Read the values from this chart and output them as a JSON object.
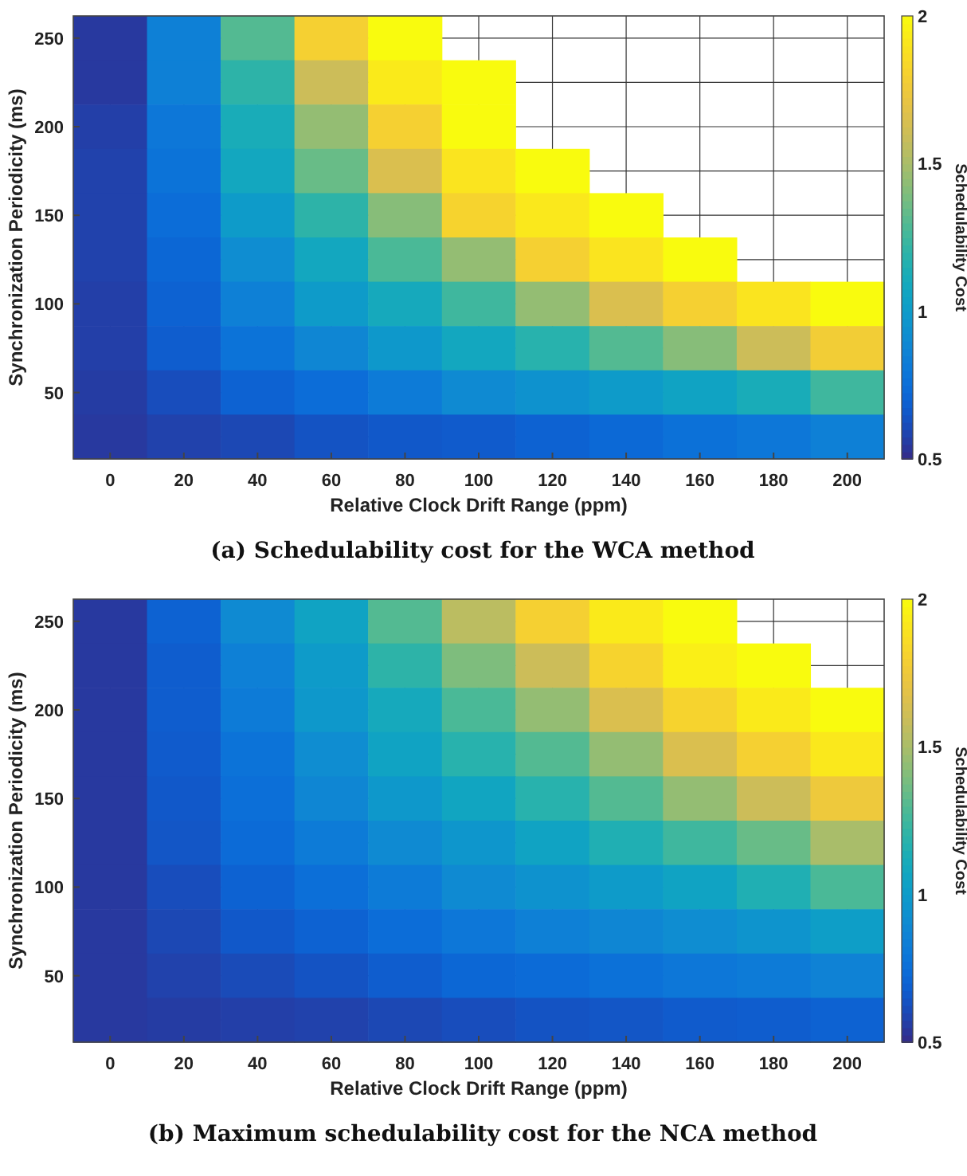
{
  "chart_data": [
    {
      "type": "heatmap",
      "title": "(a) Schedulability cost for the WCA method",
      "xlabel": "Relative Clock Drift Range (ppm)",
      "ylabel": "Synchronization Periodicity (ms)",
      "clabel": "Schedulability Cost",
      "clim": [
        0.5,
        2
      ],
      "cticks": [
        0.5,
        1,
        1.5,
        2
      ],
      "grid": true,
      "categories": [
        "0",
        "20",
        "40",
        "60",
        "80",
        "100",
        "120",
        "140",
        "160",
        "180",
        "200"
      ],
      "y_categories": [
        "250",
        null,
        "200",
        null,
        "150",
        null,
        "100",
        null,
        "50",
        null
      ],
      "cells": [
        [
          0.55,
          0.85,
          1.3,
          1.8,
          2,
          null,
          null,
          null,
          null,
          null,
          null
        ],
        [
          0.55,
          0.85,
          1.2,
          1.6,
          1.93,
          2,
          null,
          null,
          null,
          null,
          null
        ],
        [
          0.57,
          0.8,
          1.12,
          1.45,
          1.8,
          2,
          null,
          null,
          null,
          null,
          null
        ],
        [
          0.58,
          0.78,
          1.08,
          1.35,
          1.65,
          1.9,
          2,
          null,
          null,
          null,
          null
        ],
        [
          0.58,
          0.75,
          1.0,
          1.2,
          1.42,
          1.82,
          1.92,
          2,
          null,
          null,
          null
        ],
        [
          0.58,
          0.72,
          0.92,
          1.08,
          1.28,
          1.45,
          1.8,
          1.9,
          2,
          null,
          null
        ],
        [
          0.57,
          0.7,
          0.85,
          1.0,
          1.1,
          1.25,
          1.45,
          1.65,
          1.8,
          1.9,
          2
        ],
        [
          0.57,
          0.68,
          0.78,
          0.88,
          0.98,
          1.08,
          1.18,
          1.3,
          1.42,
          1.6,
          1.78
        ],
        [
          0.56,
          0.62,
          0.7,
          0.75,
          0.82,
          0.9,
          0.95,
          1.0,
          1.05,
          1.12,
          1.25
        ],
        [
          0.55,
          0.58,
          0.6,
          0.64,
          0.66,
          0.67,
          0.7,
          0.73,
          0.77,
          0.8,
          0.85
        ]
      ]
    },
    {
      "type": "heatmap",
      "title": "(b) Maximum schedulability cost for the NCA method",
      "xlabel": "Relative Clock Drift Range (ppm)",
      "ylabel": "Synchronization Periodicity (ms)",
      "clabel": "Schedulability Cost",
      "clim": [
        0.5,
        2
      ],
      "cticks": [
        0.5,
        1,
        1.5,
        2
      ],
      "grid": true,
      "categories": [
        "0",
        "20",
        "40",
        "60",
        "80",
        "100",
        "120",
        "140",
        "160",
        "180",
        "200"
      ],
      "y_categories": [
        "250",
        null,
        "200",
        null,
        "150",
        null,
        "100",
        null,
        "50",
        null
      ],
      "cells": [
        [
          0.55,
          0.7,
          0.9,
          1.05,
          1.3,
          1.55,
          1.8,
          1.93,
          2,
          null,
          null
        ],
        [
          0.55,
          0.68,
          0.85,
          1.0,
          1.2,
          1.4,
          1.6,
          1.82,
          1.95,
          2,
          null
        ],
        [
          0.55,
          0.68,
          0.82,
          0.98,
          1.1,
          1.28,
          1.45,
          1.65,
          1.82,
          1.93,
          2
        ],
        [
          0.55,
          0.67,
          0.78,
          0.92,
          1.05,
          1.18,
          1.3,
          1.45,
          1.65,
          1.8,
          1.92
        ],
        [
          0.55,
          0.66,
          0.76,
          0.88,
          0.98,
          1.07,
          1.18,
          1.3,
          1.45,
          1.6,
          1.75
        ],
        [
          0.55,
          0.65,
          0.74,
          0.82,
          0.9,
          0.97,
          1.05,
          1.15,
          1.25,
          1.35,
          1.5
        ],
        [
          0.55,
          0.62,
          0.7,
          0.76,
          0.82,
          0.9,
          0.95,
          1.0,
          1.05,
          1.15,
          1.28
        ],
        [
          0.55,
          0.6,
          0.66,
          0.7,
          0.75,
          0.8,
          0.85,
          0.88,
          0.92,
          0.96,
          1.02
        ],
        [
          0.55,
          0.58,
          0.61,
          0.64,
          0.68,
          0.72,
          0.74,
          0.77,
          0.8,
          0.82,
          0.86
        ],
        [
          0.55,
          0.56,
          0.57,
          0.58,
          0.6,
          0.62,
          0.64,
          0.65,
          0.67,
          0.68,
          0.7
        ]
      ]
    }
  ]
}
